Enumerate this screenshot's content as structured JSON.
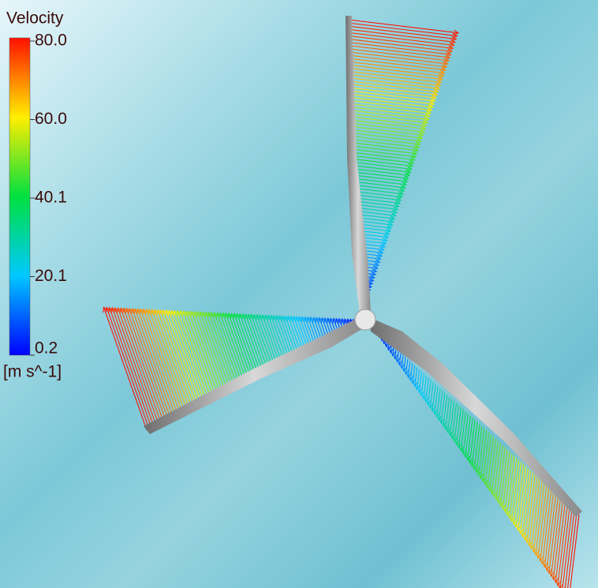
{
  "legend": {
    "title": "Velocity",
    "ticks": [
      "80.0",
      "60.0",
      "40.1",
      "20.1",
      "0.2"
    ],
    "unit": "[m s^-1]"
  }
}
